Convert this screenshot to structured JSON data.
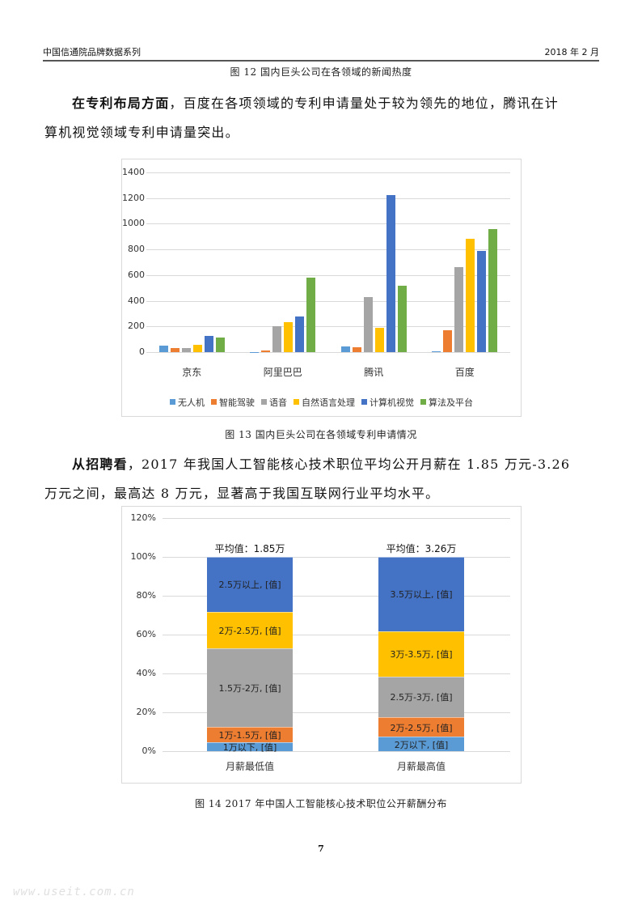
{
  "header": {
    "left": "中国信通院品牌数据系列",
    "right": "2018 年 2 月"
  },
  "fig12_caption": "图  12 国内巨头公司在各领域的新闻热度",
  "para1": {
    "lead": "在专利布局方面",
    "line1": "，百度在各项领域的专利申请量处于较为领先的地位，腾讯在计",
    "line2": "算机视觉领域专利申请量突出。"
  },
  "fig13_caption": "图 13 国内巨头公司在各领域专利申请情况",
  "para2": {
    "lead": "从招聘看",
    "line1": "，2017 年我国人工智能核心技术职位平均公开月薪在 1.85 万元-3.26",
    "line2": "万元之间，最高达 8 万元，显著高于我国互联网行业平均水平。"
  },
  "fig14_caption": "图 14  2017 年中国人工智能核心技术职位公开薪酬分布",
  "page_number": "7",
  "watermark": "www.useit.com.cn",
  "chart_data": [
    {
      "type": "bar",
      "title": "",
      "xlabel": "",
      "ylabel": "",
      "ylim": [
        0,
        1400
      ],
      "yticks": [
        "0",
        "200",
        "400",
        "600",
        "800",
        "1000",
        "1200",
        "1400"
      ],
      "grid": true,
      "legend_position": "bottom",
      "categories": [
        "京东",
        "阿里巴巴",
        "腾讯",
        "百度"
      ],
      "series": [
        {
          "name": "无人机",
          "color": "#5B9BD5",
          "values": [
            48,
            2,
            42,
            6
          ]
        },
        {
          "name": "智能驾驶",
          "color": "#ED7D31",
          "values": [
            29,
            13,
            38,
            168
          ]
        },
        {
          "name": "语音",
          "color": "#A5A5A5",
          "values": [
            34,
            202,
            430,
            665
          ]
        },
        {
          "name": "自然语言处理",
          "color": "#FFC000",
          "values": [
            55,
            232,
            190,
            884
          ]
        },
        {
          "name": "计算机视觉",
          "color": "#4472C4",
          "values": [
            128,
            280,
            1225,
            789
          ]
        },
        {
          "name": "算法及平台",
          "color": "#70AD47",
          "values": [
            112,
            579,
            516,
            960
          ]
        }
      ]
    },
    {
      "type": "bar",
      "stacked": true,
      "title": "",
      "xlabel": "",
      "ylabel": "",
      "ylim": [
        0,
        120
      ],
      "yticks": [
        "0%",
        "20%",
        "40%",
        "60%",
        "80%",
        "100%",
        "120%"
      ],
      "grid": true,
      "categories": [
        "月薪最低值",
        "月薪最高值"
      ],
      "annotations": [
        "平均值：1.85万",
        "平均值：3.26万"
      ],
      "stacks": [
        {
          "category": "月薪最低值",
          "segments": [
            {
              "label": "1万以下, [值]",
              "color": "#5B9BD5",
              "value": 4.7
            },
            {
              "label": "1万-1.5万, [值]",
              "color": "#ED7D31",
              "value": 7.8
            },
            {
              "label": "1.5万-2万, [值]",
              "color": "#A5A5A5",
              "value": 40.3
            },
            {
              "label": "2万-2.5万,  [值]",
              "color": "#FFC000",
              "value": 19.0
            },
            {
              "label": "2.5万以上, [值]",
              "color": "#4472C4",
              "value": 28.2
            }
          ]
        },
        {
          "category": "月薪最高值",
          "segments": [
            {
              "label": "2万以下, [值]",
              "color": "#5B9BD5",
              "value": 7.4
            },
            {
              "label": "2万-2.5万, [值]",
              "color": "#ED7D31",
              "value": 10.0
            },
            {
              "label": "2.5万-3万, [值]",
              "color": "#A5A5A5",
              "value": 21.1
            },
            {
              "label": "3万-3.5万, [值]",
              "color": "#FFC000",
              "value": 23.2
            },
            {
              "label": "3.5万以上, [值]",
              "color": "#4472C4",
              "value": 38.3
            }
          ]
        }
      ]
    }
  ]
}
